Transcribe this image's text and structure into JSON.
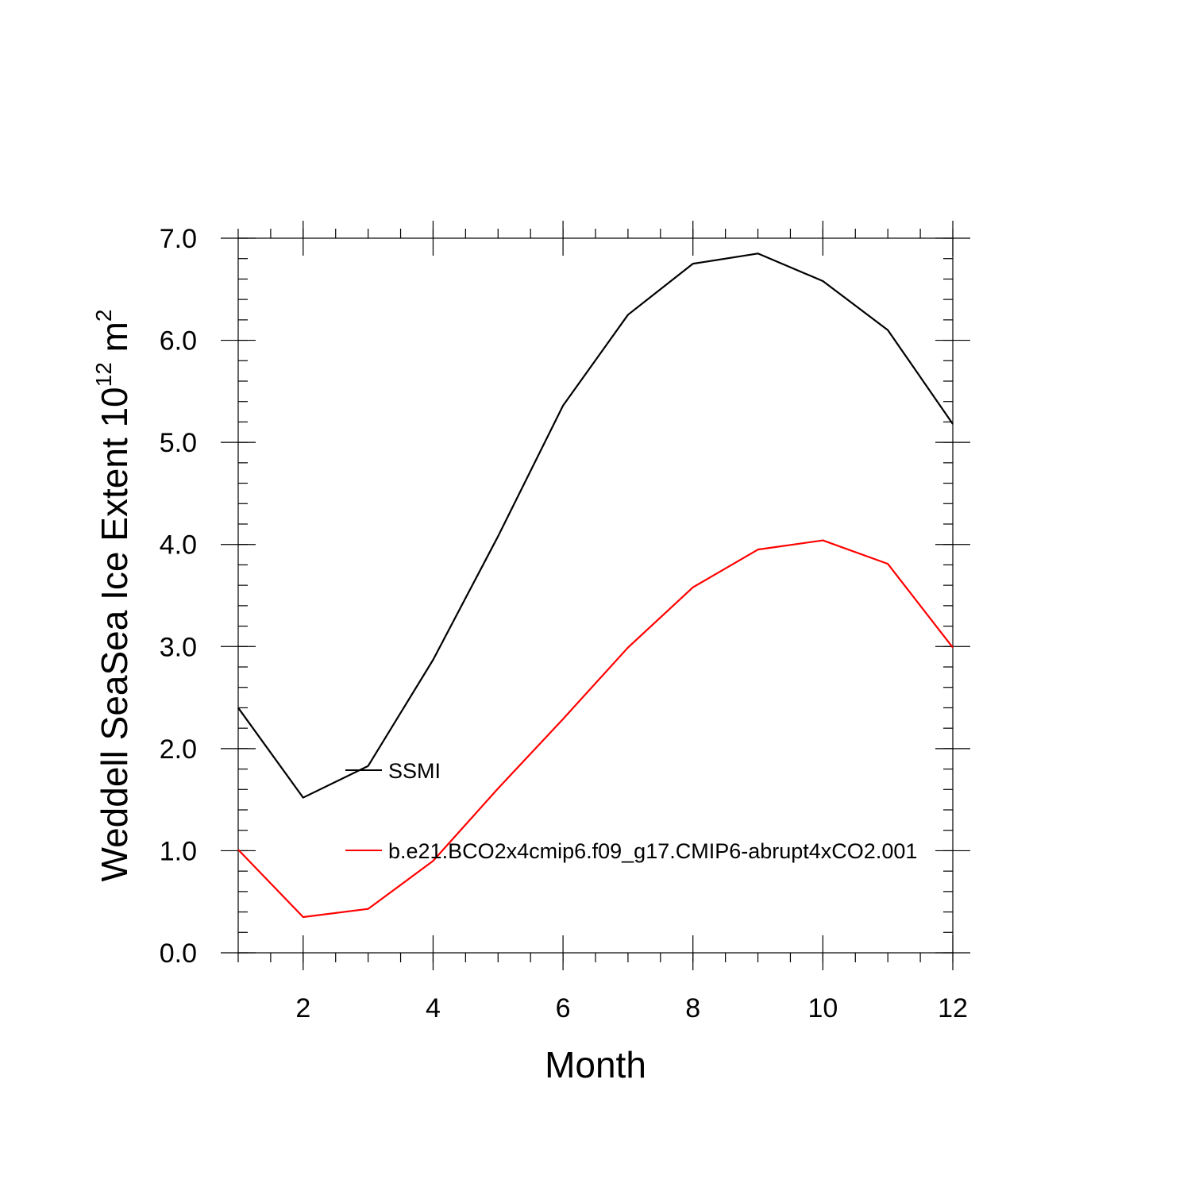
{
  "chart_data": {
    "type": "line",
    "xlabel": "Month",
    "ylabel": {
      "prefix": "Weddell SeaSea Ice Extent 10",
      "exponent1": "12",
      "middle": " m",
      "exponent2": "2"
    },
    "xlim": [
      1,
      12
    ],
    "ylim": [
      0,
      7
    ],
    "x_ticks": [
      2,
      4,
      6,
      8,
      10,
      12
    ],
    "y_ticks": [
      "0.0",
      "1.0",
      "2.0",
      "3.0",
      "4.0",
      "5.0",
      "6.0",
      "7.0"
    ],
    "x": [
      1,
      2,
      3,
      4,
      5,
      6,
      7,
      8,
      9,
      10,
      11,
      12
    ],
    "series": [
      {
        "name": "SSMI",
        "color": "#000000",
        "values": [
          2.4,
          1.52,
          1.83,
          2.87,
          4.08,
          5.36,
          6.25,
          6.75,
          6.85,
          6.58,
          6.1,
          5.18
        ]
      },
      {
        "name": "b.e21.BCO2x4cmip6.f09_g17.CMIP6-abrupt4xCO2.001",
        "color": "#ff0000",
        "values": [
          1.01,
          0.35,
          0.43,
          0.9,
          1.61,
          2.29,
          2.99,
          3.58,
          3.95,
          4.04,
          3.81,
          2.99
        ]
      }
    ],
    "legend_placement": "inside-left"
  }
}
